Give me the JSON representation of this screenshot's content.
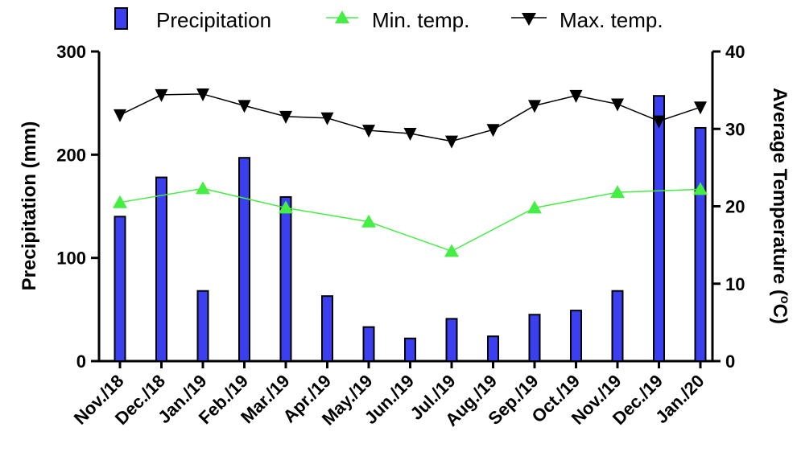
{
  "chart_data": {
    "type": "bar+line",
    "categories": [
      "Nov./18",
      "Dec./18",
      "Jan./19",
      "Feb./19",
      "Mar./19",
      "Apr./19",
      "May./19",
      "Jun./19",
      "Jul./19",
      "Aug./19",
      "Sep./19",
      "Oct./19",
      "Nov./19",
      "Dec./19",
      "Jan./20"
    ],
    "precipitation": {
      "name": "Precipitation",
      "axis": "left",
      "values": [
        140,
        178,
        68,
        197,
        159,
        63,
        33,
        22,
        41,
        24,
        45,
        49,
        68,
        257,
        226
      ]
    },
    "min_temp": {
      "name": "Min. temp.",
      "axis": "right",
      "values": [
        20.5,
        null,
        22.3,
        null,
        19.8,
        null,
        18.0,
        null,
        14.2,
        null,
        19.8,
        null,
        21.8,
        null,
        22.2
      ]
    },
    "max_temp": {
      "name": "Max. temp.",
      "axis": "right",
      "values": [
        31.8,
        34.4,
        34.5,
        33.0,
        31.6,
        31.4,
        29.8,
        29.4,
        28.4,
        29.9,
        33.0,
        34.3,
        33.2,
        31.0,
        32.8
      ]
    },
    "ylabel_left": "Precipitation (mm)",
    "ylabel_right_main": "Average Temperature (",
    "ylabel_right_sup": "o",
    "ylabel_right_tail": "C)",
    "ylim_left": [
      0,
      300
    ],
    "ylim_right": [
      0,
      40
    ],
    "yticks_left": [
      "0",
      "100",
      "200",
      "300"
    ],
    "yticks_right": [
      "0",
      "10",
      "20",
      "30",
      "40"
    ],
    "legend_position": "top",
    "colors": {
      "precipitation": "#3a3ff0",
      "min_temp": "#44ee44",
      "max_temp": "#000000"
    }
  }
}
